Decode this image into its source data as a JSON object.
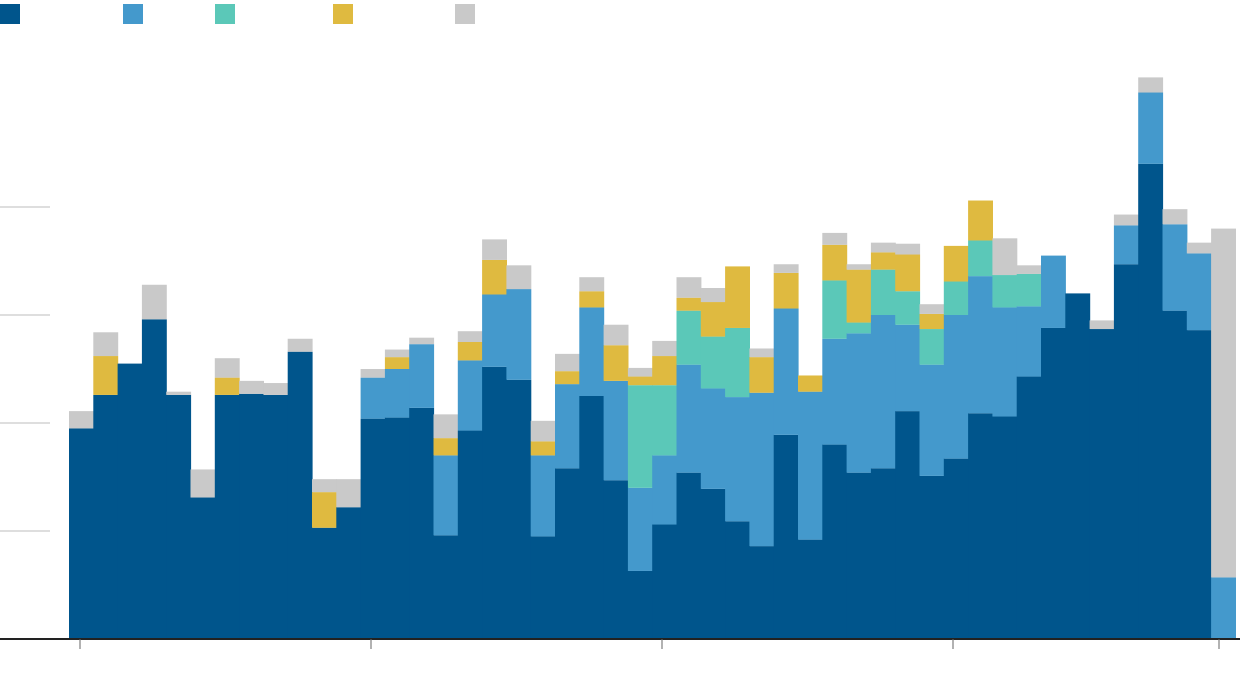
{
  "chart_data": {
    "type": "bar",
    "stacked": true,
    "title": "",
    "xlabel": "",
    "ylabel": "",
    "ylim": [
      0,
      5
    ],
    "yticks": [
      1,
      2,
      3,
      4
    ],
    "grid": true,
    "legend_position": "top-left",
    "series": [
      {
        "color": "#00558c",
        "values": [
          1.95,
          2.26,
          2.55,
          2.96,
          2.26,
          1.31,
          2.26,
          2.27,
          2.26,
          2.66,
          1.03,
          1.22,
          2.04,
          2.05,
          2.14,
          0.96,
          1.93,
          2.52,
          2.4,
          0.95,
          1.58,
          2.25,
          1.47,
          0.63,
          1.06,
          1.54,
          1.39,
          1.09,
          0.86,
          1.89,
          0.92,
          1.8,
          1.54,
          1.58,
          2.11,
          1.51,
          1.67,
          2.09,
          2.06,
          2.43,
          2.88,
          3.2,
          2.87,
          3.47,
          4.4,
          3.04,
          2.86,
          0
        ]
      },
      {
        "color": "#4499cc",
        "values": [
          0,
          0,
          0,
          0,
          0,
          0,
          0,
          0,
          0,
          0,
          0,
          0,
          0.38,
          0.45,
          0.59,
          0.74,
          0.65,
          0.67,
          0.84,
          0.75,
          0.78,
          0.82,
          0.92,
          0.77,
          0.64,
          1.0,
          0.93,
          1.15,
          1.42,
          1.17,
          1.37,
          0.98,
          1.29,
          1.42,
          0.8,
          1.03,
          1.33,
          1.27,
          1.01,
          0.65,
          0.67,
          0,
          0,
          0.36,
          0.66,
          0.8,
          0.71,
          0.57
        ]
      },
      {
        "color": "#5bc8b8",
        "values": [
          0,
          0,
          0,
          0,
          0,
          0,
          0,
          0,
          0,
          0,
          0,
          0,
          0,
          0,
          0,
          0,
          0,
          0,
          0,
          0,
          0,
          0,
          0,
          0.95,
          0.65,
          0.5,
          0.48,
          0.64,
          0,
          0,
          0,
          0.54,
          0.1,
          0.42,
          0.31,
          0.33,
          0.31,
          0.33,
          0.3,
          0.3,
          0,
          0,
          0,
          0,
          0,
          0,
          0,
          0
        ]
      },
      {
        "color": "#dfba40",
        "values": [
          0,
          0.36,
          0,
          0,
          0,
          0,
          0.16,
          0,
          0,
          0,
          0.33,
          0,
          0,
          0.11,
          0,
          0.16,
          0.17,
          0.32,
          0,
          0.13,
          0.12,
          0.15,
          0.33,
          0.08,
          0.27,
          0.12,
          0.32,
          0.57,
          0.33,
          0.33,
          0.15,
          0.33,
          0.49,
          0.16,
          0.34,
          0.14,
          0.33,
          0.37,
          0,
          0,
          0,
          0,
          0,
          0,
          0,
          0,
          0,
          0
        ]
      },
      {
        "color": "#c9c9c9",
        "values": [
          0.16,
          0.22,
          0,
          0.32,
          0.03,
          0.26,
          0.18,
          0.12,
          0.11,
          0.12,
          0.12,
          0.26,
          0.08,
          0.07,
          0.06,
          0.22,
          0.1,
          0.19,
          0.22,
          0.19,
          0.16,
          0.13,
          0.19,
          0.08,
          0.14,
          0.19,
          0.13,
          0,
          0.08,
          0.08,
          0,
          0.11,
          0.05,
          0.09,
          0.1,
          0.09,
          0,
          0,
          0.34,
          0.08,
          0,
          0,
          0.08,
          0.1,
          0.14,
          0.14,
          0.1,
          3.23
        ]
      }
    ]
  }
}
